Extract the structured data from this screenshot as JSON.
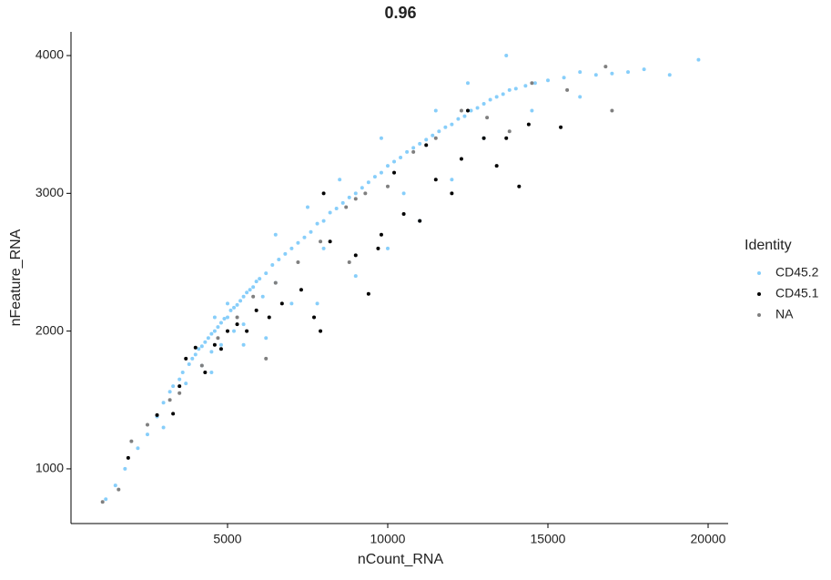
{
  "chart_data": {
    "type": "scatter",
    "title": "0.96",
    "x_label": "nCount_RNA",
    "y_label": "nFeature_RNA",
    "legend_title": "Identity",
    "legend_position": "right",
    "xlim": [
      114,
      20625
    ],
    "ylim": [
      603,
      4172
    ],
    "xticks": [
      5000,
      10000,
      15000,
      20000
    ],
    "yticks": [
      1000,
      2000,
      3000,
      4000
    ],
    "series": [
      {
        "name": "CD45.2",
        "color": "#87CEFA",
        "x": [
          1200,
          1500,
          1800,
          2200,
          2500,
          2800,
          3000,
          3200,
          3300,
          3500,
          3600,
          3800,
          3900,
          4000,
          4100,
          4200,
          4300,
          4400,
          4500,
          4600,
          4700,
          4800,
          4900,
          5000,
          5100,
          5200,
          5300,
          5400,
          5500,
          5600,
          5700,
          5800,
          5900,
          6000,
          6200,
          6400,
          6600,
          6800,
          7000,
          7200,
          7400,
          7600,
          7800,
          8000,
          8200,
          8400,
          8600,
          8800,
          9000,
          9200,
          9400,
          9600,
          9800,
          10000,
          10200,
          10400,
          10600,
          10800,
          11000,
          11200,
          11400,
          11600,
          11800,
          12000,
          12200,
          12400,
          12600,
          12800,
          13000,
          13200,
          13400,
          13600,
          13800,
          14000,
          14300,
          14600,
          15000,
          15500,
          16000,
          16500,
          17000,
          17500,
          18000,
          18800,
          19700,
          4200,
          4500,
          4800,
          5200,
          5500,
          3700,
          4600,
          5000,
          6100,
          6500,
          6200,
          7800,
          9000,
          10000,
          11000,
          12000,
          8000,
          5500,
          4500,
          7000,
          3000,
          10500,
          13000,
          14500,
          16000,
          12500,
          13700,
          9800,
          8500,
          7500,
          6500,
          11500
        ],
        "y": [
          780,
          880,
          1000,
          1150,
          1250,
          1380,
          1480,
          1560,
          1600,
          1650,
          1700,
          1760,
          1800,
          1830,
          1870,
          1890,
          1920,
          1950,
          1980,
          2000,
          2030,
          2060,
          2090,
          2100,
          2150,
          2170,
          2190,
          2220,
          2250,
          2280,
          2300,
          2320,
          2360,
          2380,
          2420,
          2480,
          2520,
          2560,
          2600,
          2640,
          2680,
          2720,
          2780,
          2800,
          2860,
          2890,
          2930,
          2970,
          3000,
          3040,
          3080,
          3120,
          3150,
          3200,
          3230,
          3260,
          3300,
          3330,
          3360,
          3390,
          3420,
          3450,
          3480,
          3500,
          3540,
          3560,
          3600,
          3620,
          3650,
          3680,
          3700,
          3720,
          3750,
          3760,
          3780,
          3800,
          3820,
          3840,
          3880,
          3860,
          3870,
          3880,
          3900,
          3860,
          3970,
          1750,
          1850,
          1900,
          2000,
          2050,
          1620,
          2100,
          2200,
          2250,
          2350,
          1950,
          2200,
          2400,
          2600,
          2800,
          3100,
          2600,
          1900,
          1700,
          2200,
          1300,
          3000,
          3400,
          3600,
          3700,
          3800,
          4000,
          3400,
          3100,
          2900,
          2700,
          3600
        ]
      },
      {
        "name": "CD45.1",
        "color": "#000000",
        "x": [
          1900,
          2800,
          3300,
          3500,
          3700,
          4000,
          4300,
          4600,
          4800,
          5000,
          5300,
          5600,
          5900,
          6300,
          6700,
          7300,
          7700,
          7900,
          8200,
          9000,
          9400,
          9700,
          9800,
          8000,
          10500,
          11000,
          11500,
          12000,
          12300,
          12500,
          13000,
          13400,
          13700,
          14100,
          14400,
          15400,
          11200,
          10200
        ],
        "y": [
          1080,
          1390,
          1400,
          1600,
          1800,
          1880,
          1700,
          1900,
          1870,
          2000,
          2050,
          2000,
          2150,
          2100,
          2200,
          2300,
          2100,
          2000,
          2650,
          2550,
          2270,
          2600,
          2700,
          3000,
          2850,
          2800,
          3100,
          3000,
          3250,
          3600,
          3400,
          3200,
          3400,
          3050,
          3500,
          3480,
          3350,
          3150
        ]
      },
      {
        "name": "NA",
        "color": "#7F7F7F",
        "x": [
          1100,
          1600,
          2000,
          2500,
          3200,
          3500,
          4200,
          4700,
          5300,
          5800,
          6500,
          7200,
          7900,
          8700,
          9300,
          10000,
          10800,
          11500,
          12300,
          13100,
          13800,
          14500,
          15600,
          17000,
          16800,
          9000,
          6200,
          8800
        ],
        "y": [
          760,
          850,
          1200,
          1320,
          1500,
          1550,
          1750,
          1950,
          2100,
          2250,
          2350,
          2500,
          2650,
          2900,
          3000,
          3050,
          3300,
          3400,
          3600,
          3550,
          3450,
          3800,
          3750,
          3600,
          3920,
          2960,
          1800,
          2500
        ]
      }
    ]
  }
}
